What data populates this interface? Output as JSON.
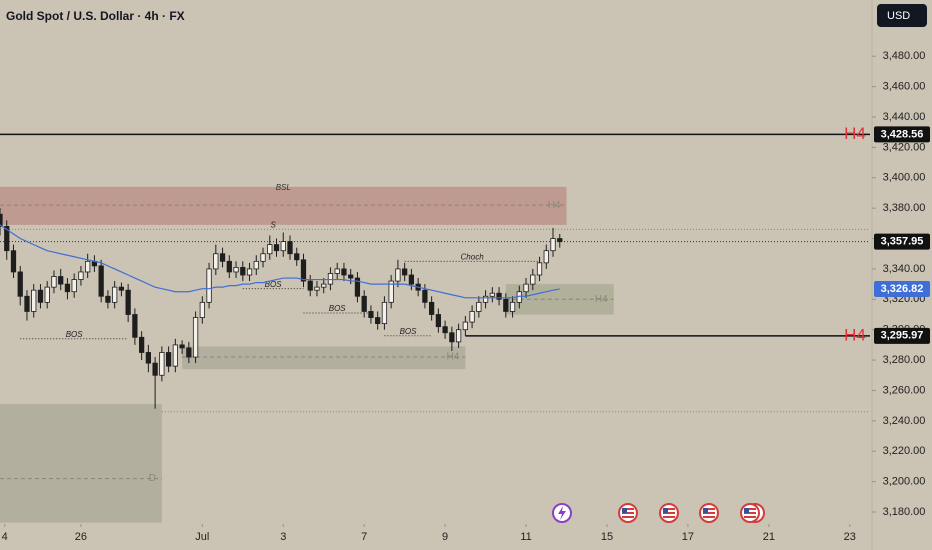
{
  "chart_data": {
    "type": "candlestick",
    "title": "Gold Spot / U.S. Dollar · 4h · FX",
    "currency": "USD",
    "xlim": [
      0,
      129
    ],
    "xticks": [
      {
        "value": 0.7,
        "label": "4"
      },
      {
        "value": 12,
        "label": "26"
      },
      {
        "value": 30,
        "label": "Jul"
      },
      {
        "value": 42,
        "label": "3"
      },
      {
        "value": 54,
        "label": "7"
      },
      {
        "value": 66,
        "label": "9"
      },
      {
        "value": 78,
        "label": "11"
      },
      {
        "value": 90,
        "label": "15"
      },
      {
        "value": 102,
        "label": "17"
      },
      {
        "value": 114,
        "label": "21"
      },
      {
        "value": 126,
        "label": "23"
      }
    ],
    "ylim": [
      3155,
      3517
    ],
    "yticks": [
      {
        "value": 3180,
        "label": "3,180.00"
      },
      {
        "value": 3200,
        "label": "3,200.00"
      },
      {
        "value": 3220,
        "label": "3,220.00"
      },
      {
        "value": 3240,
        "label": "3,240.00"
      },
      {
        "value": 3260,
        "label": "3,260.00"
      },
      {
        "value": 3280,
        "label": "3,280.00"
      },
      {
        "value": 3300,
        "label": "3,300.00"
      },
      {
        "value": 3320,
        "label": "3,320.00"
      },
      {
        "value": 3340,
        "label": "3,340.00"
      },
      {
        "value": 3360,
        "label": "3,360.00"
      },
      {
        "value": 3380,
        "label": "3,380.00"
      },
      {
        "value": 3400,
        "label": "3,400.00"
      },
      {
        "value": 3420,
        "label": "3,420.00"
      },
      {
        "value": 3440,
        "label": "3,440.00"
      },
      {
        "value": 3460,
        "label": "3,460.00"
      },
      {
        "value": 3480,
        "label": "3,480.00"
      }
    ],
    "up_color": "#f4f1ea",
    "down_color": "#1e1e1e",
    "open": [
      3376,
      3368,
      3352,
      3338,
      3322,
      3312,
      3326,
      3318,
      3328,
      3335,
      3330,
      3325,
      3333,
      3338,
      3345,
      3342,
      3322,
      3318,
      3328,
      3326,
      3310,
      3295,
      3285,
      3278,
      3270,
      3285,
      3276,
      3290,
      3288,
      3282,
      3308,
      3318,
      3340,
      3350,
      3345,
      3338,
      3341,
      3336,
      3340,
      3345,
      3350,
      3356,
      3352,
      3358,
      3350,
      3346,
      3332,
      3326,
      3328,
      3330,
      3337,
      3340,
      3336,
      3334,
      3322,
      3312,
      3308,
      3304,
      3318,
      3332,
      3340,
      3336,
      3330,
      3326,
      3318,
      3310,
      3302,
      3298,
      3292,
      3300,
      3305,
      3312,
      3318,
      3322,
      3324,
      3320,
      3312,
      3318,
      3325,
      3330,
      3336,
      3344,
      3352,
      3360
    ],
    "high": [
      3380,
      3372,
      3356,
      3342,
      3326,
      3330,
      3330,
      3332,
      3339,
      3340,
      3334,
      3337,
      3342,
      3350,
      3349,
      3346,
      3326,
      3332,
      3331,
      3330,
      3314,
      3299,
      3290,
      3282,
      3289,
      3289,
      3294,
      3293,
      3292,
      3312,
      3322,
      3344,
      3356,
      3354,
      3349,
      3345,
      3345,
      3344,
      3349,
      3354,
      3362,
      3360,
      3364,
      3362,
      3354,
      3350,
      3336,
      3332,
      3334,
      3341,
      3344,
      3344,
      3340,
      3338,
      3326,
      3316,
      3312,
      3322,
      3336,
      3346,
      3344,
      3340,
      3334,
      3330,
      3322,
      3314,
      3306,
      3302,
      3304,
      3309,
      3316,
      3322,
      3326,
      3328,
      3328,
      3324,
      3322,
      3329,
      3334,
      3340,
      3348,
      3356,
      3367,
      3363
    ],
    "low": [
      3362,
      3346,
      3334,
      3316,
      3306,
      3308,
      3314,
      3314,
      3324,
      3326,
      3320,
      3321,
      3329,
      3334,
      3338,
      3318,
      3314,
      3314,
      3322,
      3305,
      3290,
      3280,
      3272,
      3248,
      3266,
      3272,
      3272,
      3284,
      3278,
      3278,
      3304,
      3314,
      3336,
      3341,
      3334,
      3334,
      3332,
      3332,
      3336,
      3341,
      3346,
      3348,
      3348,
      3346,
      3342,
      3328,
      3322,
      3322,
      3324,
      3326,
      3333,
      3332,
      3330,
      3318,
      3308,
      3304,
      3300,
      3300,
      3314,
      3328,
      3332,
      3326,
      3322,
      3314,
      3306,
      3298,
      3294,
      3286,
      3288,
      3296,
      3301,
      3308,
      3314,
      3318,
      3316,
      3308,
      3308,
      3314,
      3321,
      3326,
      3332,
      3340,
      3348,
      3354
    ],
    "close": [
      3368,
      3352,
      3338,
      3322,
      3312,
      3326,
      3318,
      3328,
      3335,
      3330,
      3325,
      3333,
      3338,
      3345,
      3342,
      3322,
      3318,
      3328,
      3326,
      3310,
      3295,
      3285,
      3278,
      3270,
      3285,
      3276,
      3290,
      3288,
      3282,
      3308,
      3318,
      3340,
      3350,
      3345,
      3338,
      3341,
      3336,
      3340,
      3345,
      3350,
      3356,
      3352,
      3358,
      3350,
      3346,
      3332,
      3326,
      3328,
      3330,
      3337,
      3340,
      3336,
      3334,
      3322,
      3312,
      3308,
      3304,
      3318,
      3332,
      3340,
      3336,
      3330,
      3326,
      3318,
      3310,
      3302,
      3298,
      3292,
      3300,
      3305,
      3312,
      3318,
      3322,
      3324,
      3320,
      3312,
      3318,
      3325,
      3330,
      3336,
      3344,
      3352,
      3360,
      3357.95
    ],
    "ma": {
      "color": "#3f6fd6",
      "values": [
        3369,
        3366,
        3363,
        3360,
        3358,
        3356,
        3354,
        3352,
        3351,
        3350,
        3349,
        3348,
        3347,
        3346,
        3345,
        3344,
        3342,
        3340,
        3338,
        3336,
        3334,
        3332,
        3330,
        3328,
        3327,
        3326,
        3325,
        3325,
        3325,
        3326,
        3327,
        3327,
        3328,
        3328,
        3329,
        3329,
        3330,
        3330,
        3331,
        3331,
        3332,
        3333,
        3334,
        3334,
        3334,
        3333,
        3333,
        3333,
        3333,
        3333,
        3333,
        3333,
        3332,
        3332,
        3331,
        3330,
        3330,
        3330,
        3330,
        3330,
        3330,
        3329,
        3328,
        3327,
        3326,
        3325,
        3324,
        3323,
        3322,
        3321,
        3321,
        3321,
        3321,
        3321,
        3321,
        3321,
        3321,
        3322,
        3322,
        3323,
        3324,
        3325,
        3326,
        3326.82
      ]
    },
    "zones": [
      {
        "from": 0,
        "to": 84,
        "low": 3369,
        "high": 3394,
        "color": "#b98c84",
        "label": "BSL",
        "dash": 3382,
        "dash_label": "H4"
      },
      {
        "from": 75,
        "to": 91,
        "low": 3310,
        "high": 3330,
        "color": "#a8aa93",
        "dash": 3320,
        "dash_label": "H4"
      },
      {
        "from": 27,
        "to": 69,
        "low": 3274,
        "high": 3289,
        "color": "#aaa898",
        "dash": 3282,
        "dash_label": "H4"
      },
      {
        "from": 0,
        "to": 24,
        "low": 3173,
        "high": 3251,
        "color": "#aaa898",
        "dash": 3202,
        "dash_label": "D"
      }
    ],
    "dotted_levels": [
      {
        "value": 3366,
        "from": 0
      },
      {
        "value": 3246,
        "from": 24
      }
    ],
    "levels": [
      {
        "value": 3428.56,
        "label": "3,428.56",
        "tag": "H4",
        "from": 0
      },
      {
        "value": 3295.97,
        "label": "3,295.97",
        "tag": "H4",
        "from": 69
      }
    ],
    "price_labels": [
      {
        "value": 3357.95,
        "label": "3,357.95",
        "color": "#111111",
        "from": 0
      },
      {
        "value": 3326.82,
        "label": "3,326.82",
        "color": "#3f6fd6",
        "from": 84
      }
    ],
    "annotations": [
      {
        "text": "S",
        "value": 3366,
        "from": 40.5,
        "to": 40.5
      },
      {
        "text": "BOS",
        "value": 3294,
        "from": 3,
        "to": 19
      },
      {
        "text": "BOS",
        "value": 3327,
        "from": 36,
        "to": 45
      },
      {
        "text": "BOS",
        "value": 3311,
        "from": 45,
        "to": 55
      },
      {
        "text": "BOS",
        "value": 3296,
        "from": 57,
        "to": 64
      },
      {
        "text": "Choch",
        "value": 3345,
        "from": 60,
        "to": 80
      }
    ]
  }
}
